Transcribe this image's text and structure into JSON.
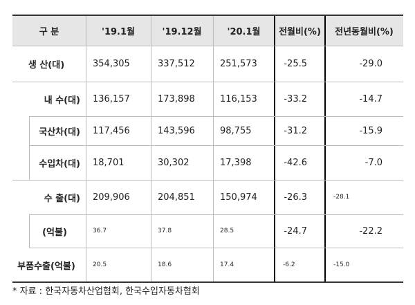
{
  "table": {
    "header": [
      "구 분",
      "'19.1월",
      "'19.12월",
      "'20.1월",
      "전월비(%)",
      "전년동월비(%)"
    ],
    "rows": [
      [
        "생 산(대)",
        "354,305",
        "337,512",
        "251,573",
        "-25.5",
        "-29.0"
      ],
      [
        "내 수(대)",
        "136,157",
        "173,898",
        "116,153",
        "-33.2",
        "-14.7"
      ],
      [
        "국산차(대)",
        "117,456",
        "143,596",
        "98,755",
        "-31.2",
        "-15.9"
      ],
      [
        "수입차(대)",
        "18,701",
        "30,302",
        "17,398",
        "-42.6",
        "-7.0"
      ],
      [
        "수 출(대)",
        "209,906",
        "204,851",
        "150,974",
        "-26.3",
        "-28.1"
      ],
      [
        "(억불)",
        "36.7",
        "37.8",
        "28.5",
        "-24.7",
        "-22.2"
      ],
      [
        "부품수출(억불)",
        "20.5",
        "18.6",
        "17.4",
        "-6.2",
        "-15.0"
      ]
    ]
  },
  "footnote": "* 자료 : 한국자동차산업협회, 한국수입자동차협회"
}
